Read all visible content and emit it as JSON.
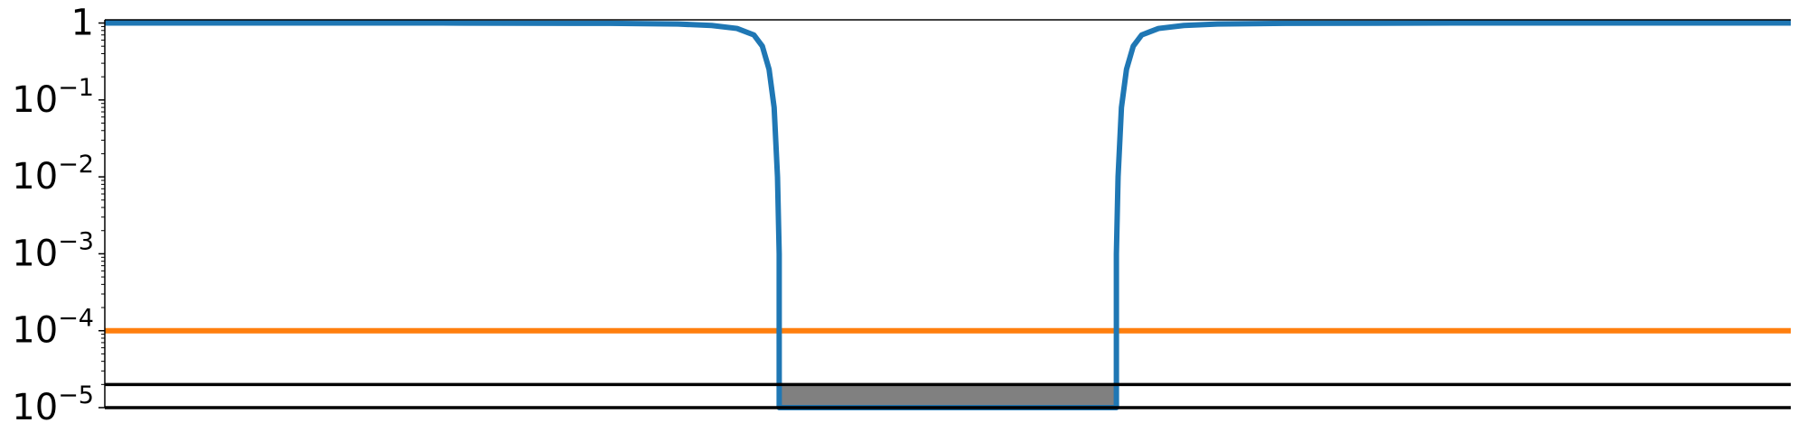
{
  "chart_data": {
    "type": "line",
    "title": "",
    "xlabel": "",
    "ylabel": "",
    "yscale": "log",
    "ylim": [
      1e-05,
      1.1
    ],
    "xlim": [
      0,
      1
    ],
    "grid": false,
    "legend": "none",
    "ytick_labels": [
      {
        "value": 1,
        "base": "1",
        "exp": ""
      },
      {
        "value": 0.1,
        "base": "10",
        "exp": "−1"
      },
      {
        "value": 0.01,
        "base": "10",
        "exp": "−2"
      },
      {
        "value": 0.001,
        "base": "10",
        "exp": "−3"
      },
      {
        "value": 0.0001,
        "base": "10",
        "exp": "−4"
      },
      {
        "value": 1e-05,
        "base": "10",
        "exp": "−5"
      }
    ],
    "series": [
      {
        "color": "#1f77b4",
        "x": [
          0.0,
          0.2,
          0.3,
          0.34,
          0.36,
          0.375,
          0.385,
          0.39,
          0.394,
          0.397,
          0.399,
          0.4,
          0.4,
          0.6,
          0.6,
          0.601,
          0.603,
          0.606,
          0.61,
          0.615,
          0.625,
          0.64,
          0.66,
          0.7,
          0.8,
          1.0
        ],
        "y": [
          1.0,
          1.0,
          0.99,
          0.97,
          0.93,
          0.85,
          0.7,
          0.5,
          0.25,
          0.08,
          0.01,
          0.001,
          1e-05,
          1e-05,
          0.001,
          0.01,
          0.08,
          0.25,
          0.5,
          0.7,
          0.85,
          0.93,
          0.97,
          0.99,
          1.0,
          1.0
        ]
      },
      {
        "color": "#ff7f0e",
        "x": [
          0.0,
          1.0
        ],
        "y": [
          0.0001,
          0.0001
        ]
      }
    ],
    "reference_lines": [
      {
        "y": 1.1,
        "color": "#000000"
      },
      {
        "y": 2e-05,
        "color": "#000000"
      },
      {
        "y": 1e-05,
        "color": "#000000"
      }
    ],
    "shaded_region": {
      "x": [
        0.4,
        0.6
      ],
      "y": [
        1e-05,
        2e-05
      ],
      "color": "#808080"
    }
  }
}
